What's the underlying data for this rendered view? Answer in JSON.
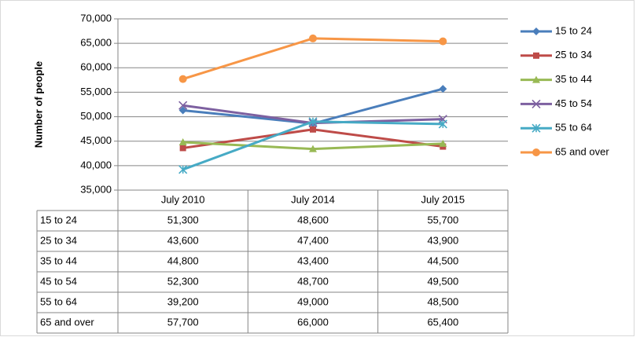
{
  "chart_data": {
    "type": "line",
    "y_label": "Number of people",
    "categories": [
      "July 2010",
      "July 2014",
      "July 2015"
    ],
    "ylim": [
      35000,
      70000
    ],
    "yticks": [
      {
        "value": 35000,
        "label": "35,000"
      },
      {
        "value": 40000,
        "label": "40,000"
      },
      {
        "value": 45000,
        "label": "45,000"
      },
      {
        "value": 50000,
        "label": "50,000"
      },
      {
        "value": 55000,
        "label": "55,000"
      },
      {
        "value": 60000,
        "label": "60,000"
      },
      {
        "value": 65000,
        "label": "65,000"
      },
      {
        "value": 70000,
        "label": "70,000"
      }
    ],
    "grid": true,
    "legend": "right",
    "series": [
      {
        "name": "15 to 24",
        "color": "#4a7ebb",
        "marker": "diamond",
        "values": [
          51300,
          48600,
          55700
        ],
        "value_labels": [
          "51,300",
          "48,600",
          "55,700"
        ]
      },
      {
        "name": "25 to 34",
        "color": "#be4b48",
        "marker": "square",
        "values": [
          43600,
          47400,
          43900
        ],
        "value_labels": [
          "43,600",
          "47,400",
          "43,900"
        ]
      },
      {
        "name": "35 to 44",
        "color": "#98b954",
        "marker": "triangle",
        "values": [
          44800,
          43400,
          44500
        ],
        "value_labels": [
          "44,800",
          "43,400",
          "44,500"
        ]
      },
      {
        "name": "45 to 54",
        "color": "#7d60a0",
        "marker": "x",
        "values": [
          52300,
          48700,
          49500
        ],
        "value_labels": [
          "52,300",
          "48,700",
          "49,500"
        ]
      },
      {
        "name": "55 to 64",
        "color": "#46aac5",
        "marker": "star",
        "values": [
          39200,
          49000,
          48500
        ],
        "value_labels": [
          "39,200",
          "49,000",
          "48,500"
        ]
      },
      {
        "name": "65 and over",
        "color": "#f79646",
        "marker": "circle",
        "values": [
          57700,
          66000,
          65400
        ],
        "value_labels": [
          "57,700",
          "66,000",
          "65,400"
        ]
      }
    ]
  }
}
